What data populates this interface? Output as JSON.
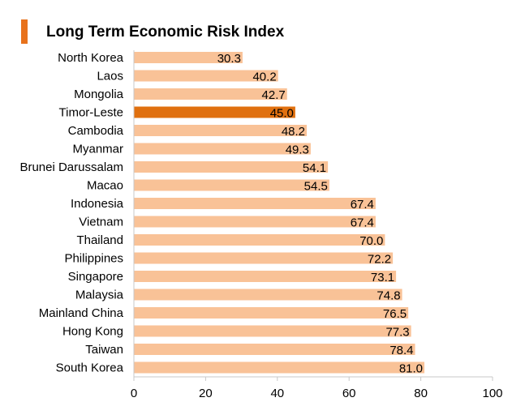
{
  "chart_data": {
    "type": "bar",
    "orientation": "horizontal",
    "title": "Long Term Economic Risk Index",
    "categories": [
      "North Korea",
      "Laos",
      "Mongolia",
      "Timor-Leste",
      "Cambodia",
      "Myanmar",
      "Brunei Darussalam",
      "Macao",
      "Indonesia",
      "Vietnam",
      "Thailand",
      "Philippines",
      "Singapore",
      "Malaysia",
      "Mainland China",
      "Hong Kong",
      "Taiwan",
      "South Korea"
    ],
    "values": [
      30.3,
      40.2,
      42.7,
      45.0,
      48.2,
      49.3,
      54.1,
      54.5,
      67.4,
      67.4,
      70.0,
      72.2,
      73.1,
      74.8,
      76.5,
      77.3,
      78.4,
      81.0
    ],
    "data_labels": [
      "30.3",
      "40.2",
      "42.7",
      "45.0",
      "48.2",
      "49.3",
      "54.1",
      "54.5",
      "67.4",
      "67.4",
      "70.0",
      "72.2",
      "73.1",
      "74.8",
      "76.5",
      "77.3",
      "78.4",
      "81.0"
    ],
    "highlight": "Timor-Leste",
    "xlim": [
      0,
      100
    ],
    "xticks": [
      "0",
      "20",
      "40",
      "60",
      "80",
      "100"
    ],
    "xlabel": "",
    "ylabel": "",
    "grid": false,
    "colors": {
      "bar": "#f9c297",
      "highlight": "#e0700f",
      "title_marker": "#e8721c",
      "axis": "#c8c8c8"
    }
  }
}
